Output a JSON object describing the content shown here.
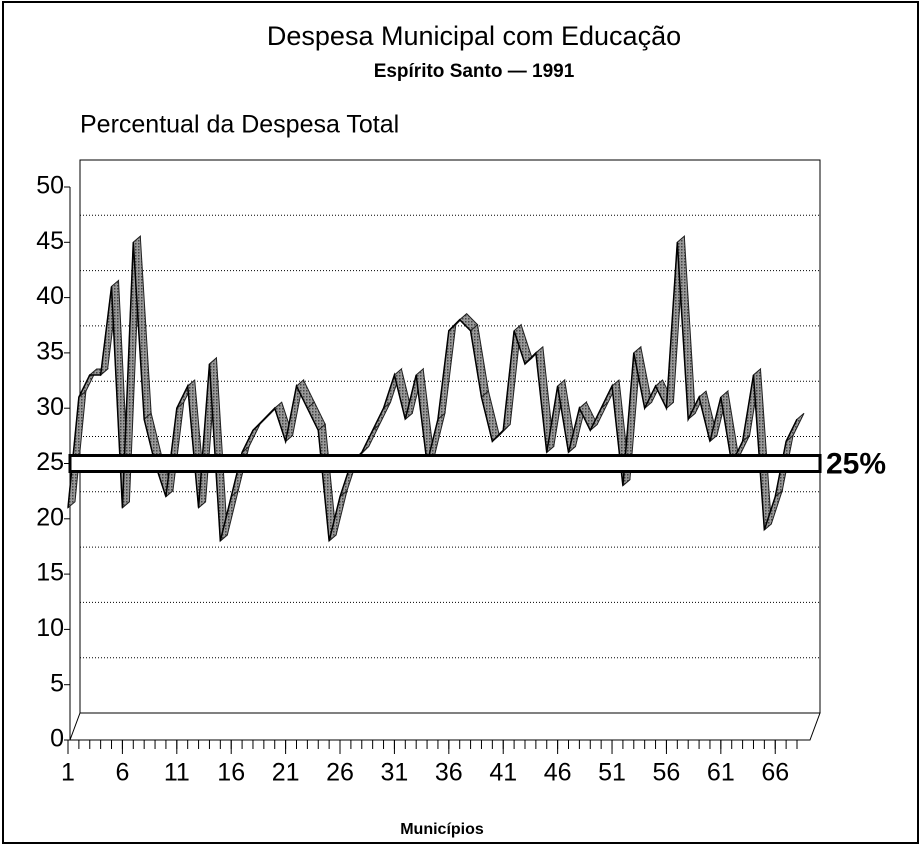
{
  "chart_data": {
    "type": "line",
    "title": "Despesa Municipal com Educação",
    "subtitle": "Espírito Santo — 1991",
    "y_label": "Percentual da Despesa Total",
    "x_label": "Municípios",
    "x": [
      1,
      2,
      3,
      4,
      5,
      6,
      7,
      8,
      9,
      10,
      11,
      12,
      13,
      14,
      15,
      16,
      17,
      18,
      19,
      20,
      21,
      22,
      23,
      24,
      25,
      26,
      27,
      28,
      29,
      30,
      31,
      32,
      33,
      34,
      35,
      36,
      37,
      38,
      39,
      40,
      41,
      42,
      43,
      44,
      45,
      46,
      47,
      48,
      49,
      50,
      51,
      52,
      53,
      54,
      55,
      56,
      57,
      58,
      59,
      60,
      61,
      62,
      63,
      64,
      65,
      66,
      67,
      68
    ],
    "series": [
      {
        "name": "Despesa",
        "color": "#555555",
        "values": [
          21,
          31,
          33,
          33,
          41,
          21,
          45,
          29,
          25,
          22,
          30,
          32,
          21,
          34,
          18,
          22,
          26,
          28,
          29,
          30,
          27,
          32,
          30,
          28,
          18,
          22,
          25,
          26,
          28,
          30,
          33,
          29,
          33,
          25,
          29,
          37,
          38,
          37,
          31,
          27,
          28,
          37,
          34,
          35,
          26,
          32,
          26,
          30,
          28,
          30,
          32,
          23,
          35,
          30,
          32,
          30,
          45,
          29,
          31,
          27,
          31,
          25,
          27,
          33,
          19,
          22,
          27,
          29
        ]
      }
    ],
    "xlim": [
      1,
      68
    ],
    "xticks": [
      1,
      6,
      11,
      16,
      21,
      26,
      31,
      36,
      41,
      46,
      51,
      56,
      61,
      66
    ],
    "ylim": [
      0,
      50
    ],
    "yticks": [
      0,
      5,
      10,
      15,
      20,
      25,
      30,
      35,
      40,
      45,
      50
    ],
    "grid": true,
    "reference_line": {
      "value": 25,
      "label": "25%"
    }
  }
}
